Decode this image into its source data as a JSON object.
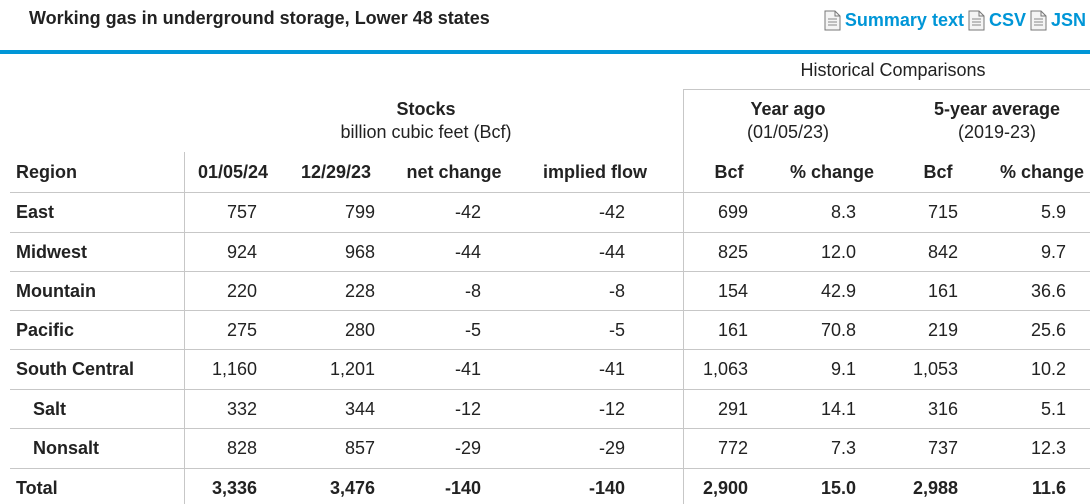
{
  "title": "Working gas in underground storage, Lower 48 states",
  "links": [
    {
      "label": "Summary text",
      "icon": "document-icon"
    },
    {
      "label": "CSV",
      "icon": "document-icon"
    },
    {
      "label": "JSN",
      "icon": "document-icon"
    }
  ],
  "headers": {
    "historical": "Historical Comparisons",
    "stocks_title": "Stocks",
    "stocks_unit": "billion cubic feet (Bcf)",
    "year_ago_title": "Year ago",
    "year_ago_date": "(01/05/23)",
    "avg_title": "5-year average",
    "avg_range": "(2019-23)"
  },
  "columns": [
    "Region",
    "01/05/24",
    "12/29/23",
    "net change",
    "implied flow",
    "Bcf",
    "% change",
    "Bcf",
    "% change"
  ],
  "rows": [
    {
      "region": "East",
      "indent": false,
      "bold": false,
      "values": [
        "757",
        "799",
        "-42",
        "-42",
        "699",
        "8.3",
        "715",
        "5.9"
      ]
    },
    {
      "region": "Midwest",
      "indent": false,
      "bold": false,
      "values": [
        "924",
        "968",
        "-44",
        "-44",
        "825",
        "12.0",
        "842",
        "9.7"
      ]
    },
    {
      "region": "Mountain",
      "indent": false,
      "bold": false,
      "values": [
        "220",
        "228",
        "-8",
        "-8",
        "154",
        "42.9",
        "161",
        "36.6"
      ]
    },
    {
      "region": "Pacific",
      "indent": false,
      "bold": false,
      "values": [
        "275",
        "280",
        "-5",
        "-5",
        "161",
        "70.8",
        "219",
        "25.6"
      ]
    },
    {
      "region": "South Central",
      "indent": false,
      "bold": false,
      "values": [
        "1,160",
        "1,201",
        "-41",
        "-41",
        "1,063",
        "9.1",
        "1,053",
        "10.2"
      ]
    },
    {
      "region": "Salt",
      "indent": true,
      "bold": false,
      "values": [
        "332",
        "344",
        "-12",
        "-12",
        "291",
        "14.1",
        "316",
        "5.1"
      ]
    },
    {
      "region": "Nonsalt",
      "indent": true,
      "bold": false,
      "values": [
        "828",
        "857",
        "-29",
        "-29",
        "772",
        "7.3",
        "737",
        "12.3"
      ]
    },
    {
      "region": "Total",
      "indent": false,
      "bold": true,
      "values": [
        "3,336",
        "3,476",
        "-140",
        "-140",
        "2,900",
        "15.0",
        "2,988",
        "11.6"
      ]
    }
  ]
}
